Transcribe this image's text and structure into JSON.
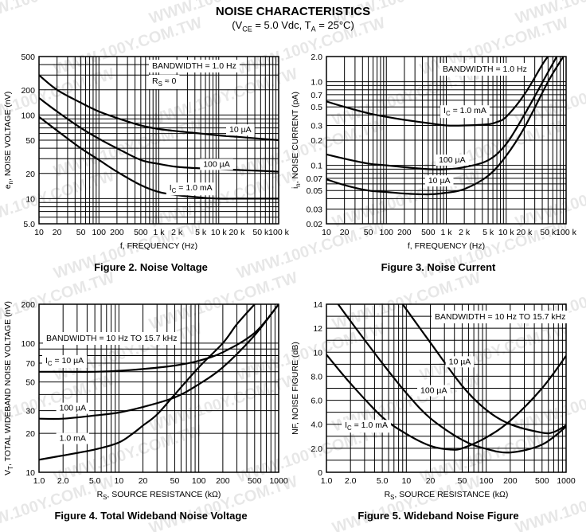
{
  "header": {
    "title": "NOISE CHARACTERISTICS",
    "subtitle_prefix": "(V",
    "subtitle_sub1": "CE",
    "subtitle_mid": " = 5.0 Vdc, T",
    "subtitle_sub2": "A",
    "subtitle_suffix": " = 25°C)"
  },
  "watermark": "WWW.100Y.COM.TW",
  "chart_data": [
    {
      "id": "fig2",
      "type": "line",
      "caption": "Figure 2. Noise Voltage",
      "title": "",
      "xlabel": "f, FREQUENCY (Hz)",
      "ylabel": "e_n, NOISE VOLTAGE (nV)",
      "xscale": "log",
      "yscale": "log",
      "xlim": [
        10,
        100000
      ],
      "ylim": [
        5,
        500
      ],
      "grid": true,
      "xticks": [
        10,
        20,
        50,
        100,
        200,
        500,
        1000,
        2000,
        5000,
        10000,
        20000,
        50000,
        100000
      ],
      "xtick_labels": [
        "10",
        "20",
        "50",
        "100",
        "200",
        "500",
        "1 k",
        "2 k",
        "5 k",
        "10 k",
        "20 k",
        "50 k",
        "100 k"
      ],
      "yticks": [
        5,
        10,
        20,
        50,
        100,
        200,
        500
      ],
      "ytick_labels": [
        "5.0",
        "10",
        "20",
        "50",
        "100",
        "200",
        "500"
      ],
      "annotations": [
        "BANDWIDTH = 1.0 Hz",
        "R_S ≈ 0"
      ],
      "series": [
        {
          "name": "10 µA",
          "x": [
            10,
            20,
            50,
            100,
            200,
            500,
            1000,
            2000,
            5000,
            10000,
            20000,
            50000,
            100000
          ],
          "y": [
            300,
            200,
            140,
            110,
            92,
            75,
            68,
            64,
            60,
            57,
            55,
            52,
            50
          ]
        },
        {
          "name": "100 µA",
          "x": [
            10,
            20,
            50,
            100,
            200,
            500,
            1000,
            2000,
            5000,
            10000,
            20000,
            50000,
            100000
          ],
          "y": [
            160,
            110,
            70,
            52,
            40,
            29,
            26,
            24,
            23,
            22.5,
            22,
            21.5,
            21
          ]
        },
        {
          "name": "I_C = 1.0 mA",
          "x": [
            10,
            20,
            50,
            100,
            200,
            500,
            1000,
            2000,
            5000,
            10000,
            20000,
            50000,
            100000
          ],
          "y": [
            95,
            65,
            40,
            29,
            21,
            14.5,
            12,
            11,
            10.3,
            10,
            10,
            10,
            10
          ]
        }
      ],
      "labels": [
        {
          "text": "10 µA",
          "x": 15000,
          "y": 62
        },
        {
          "text": "100 µA",
          "x": 5500,
          "y": 24
        },
        {
          "text": "I_C = 1.0 mA",
          "x": 1500,
          "y": 12.5
        }
      ]
    },
    {
      "id": "fig3",
      "type": "line",
      "caption": "Figure 3. Noise Current",
      "title": "",
      "xlabel": "f, FREQUENCY (Hz)",
      "ylabel": "i_n, NOISE CURRENT (pA)",
      "xscale": "log",
      "yscale": "log",
      "xlim": [
        10,
        100000
      ],
      "ylim": [
        0.02,
        2.0
      ],
      "grid": true,
      "xticks": [
        10,
        20,
        50,
        100,
        200,
        500,
        1000,
        2000,
        5000,
        10000,
        20000,
        50000,
        100000
      ],
      "xtick_labels": [
        "10",
        "20",
        "50",
        "100",
        "200",
        "500",
        "1 k",
        "2 k",
        "5 k",
        "10 k",
        "20 k",
        "50 k",
        "100 k"
      ],
      "yticks": [
        0.02,
        0.03,
        0.05,
        0.07,
        0.1,
        0.2,
        0.3,
        0.5,
        0.7,
        1.0,
        2.0
      ],
      "ytick_labels": [
        "0.02",
        "0.03",
        "0.05",
        "0.07",
        "0.1",
        "0.2",
        "0.3",
        "0.5",
        "0.7",
        "1.0",
        "2.0"
      ],
      "annotations": [
        "BANDWIDTH = 1.0 Hz"
      ],
      "series": [
        {
          "name": "I_C = 1.0 mA",
          "x": [
            10,
            20,
            50,
            100,
            200,
            500,
            1000,
            2000,
            5000,
            7000,
            10000,
            20000,
            40000,
            50000
          ],
          "y": [
            0.58,
            0.5,
            0.42,
            0.38,
            0.35,
            0.32,
            0.3,
            0.3,
            0.31,
            0.33,
            0.38,
            0.7,
            1.6,
            2.0
          ]
        },
        {
          "name": "100 µA",
          "x": [
            10,
            20,
            50,
            100,
            200,
            500,
            1000,
            2000,
            5000,
            10000,
            20000,
            50000,
            70000
          ],
          "y": [
            0.135,
            0.12,
            0.105,
            0.1,
            0.095,
            0.09,
            0.09,
            0.095,
            0.115,
            0.18,
            0.4,
            1.3,
            2.0
          ]
        },
        {
          "name": "10 µA",
          "x": [
            10,
            20,
            50,
            100,
            200,
            500,
            1000,
            2000,
            5000,
            10000,
            20000,
            50000,
            90000
          ],
          "y": [
            0.068,
            0.058,
            0.05,
            0.048,
            0.046,
            0.045,
            0.047,
            0.052,
            0.075,
            0.13,
            0.28,
            1.0,
            2.0
          ]
        }
      ],
      "labels": [
        {
          "text": "I_C = 1.0 mA",
          "x": 900,
          "y": 0.42
        },
        {
          "text": "100 µA",
          "x": 750,
          "y": 0.108
        },
        {
          "text": "10 µA",
          "x": 500,
          "y": 0.061
        }
      ]
    },
    {
      "id": "fig4",
      "type": "line",
      "caption": "Figure 4. Total Wideband Noise Voltage",
      "title": "",
      "xlabel": "R_S, SOURCE RESISTANCE (kΩ)",
      "ylabel": "V_T, TOTAL WIDEBAND NOISE VOLTAGE (nV)",
      "xscale": "log",
      "yscale": "log",
      "xlim": [
        1,
        1000
      ],
      "ylim": [
        10,
        200
      ],
      "grid": true,
      "xticks": [
        1,
        2,
        5,
        10,
        20,
        50,
        100,
        200,
        500,
        1000
      ],
      "xtick_labels": [
        "1.0",
        "2.0",
        "5.0",
        "10",
        "20",
        "50",
        "100",
        "200",
        "500",
        "1000"
      ],
      "yticks": [
        10,
        20,
        30,
        50,
        70,
        100,
        200
      ],
      "ytick_labels": [
        "10",
        "20",
        "30",
        "50",
        "70",
        "100",
        "200"
      ],
      "annotations": [
        "BANDWIDTH = 10 Hz TO 15.7 kHz"
      ],
      "series": [
        {
          "name": "I_C = 10 µA",
          "x": [
            1,
            2,
            5,
            10,
            20,
            50,
            100,
            200,
            500,
            1000
          ],
          "y": [
            60,
            60,
            60,
            61,
            63,
            67,
            73,
            85,
            120,
            200
          ]
        },
        {
          "name": "100 µA",
          "x": [
            1,
            2,
            5,
            10,
            20,
            50,
            100,
            200,
            500,
            1000
          ],
          "y": [
            26,
            26,
            27.5,
            29,
            32,
            38,
            48,
            65,
            115,
            200
          ]
        },
        {
          "name": "1.0 mA",
          "x": [
            1,
            2,
            5,
            10,
            15,
            20,
            30,
            50,
            100,
            200,
            300,
            500
          ],
          "y": [
            12.5,
            13.5,
            15,
            17,
            20,
            23,
            28,
            40,
            65,
            100,
            140,
            200
          ]
        }
      ],
      "labels": [
        {
          "text": "I_C = 10 µA",
          "x": 1.2,
          "y": 70
        },
        {
          "text": "100 µA",
          "x": 1.8,
          "y": 30
        },
        {
          "text": "1.0 mA",
          "x": 1.8,
          "y": 17.5
        }
      ]
    },
    {
      "id": "fig5",
      "type": "line",
      "caption": "Figure 5. Wideband Noise Figure",
      "title": "",
      "xlabel": "R_S, SOURCE RESISTANCE (kΩ)",
      "ylabel": "NF, NOISE FIGURE (dB)",
      "xscale": "log",
      "yscale": "linear",
      "xlim": [
        1,
        1000
      ],
      "ylim": [
        0,
        14
      ],
      "grid": true,
      "xticks": [
        1,
        2,
        5,
        10,
        20,
        50,
        100,
        200,
        500,
        1000
      ],
      "xtick_labels": [
        "1.0",
        "2.0",
        "5.0",
        "10",
        "20",
        "50",
        "100",
        "200",
        "500",
        "1000"
      ],
      "yticks": [
        0,
        2,
        4,
        6,
        8,
        10,
        12,
        14
      ],
      "ytick_labels": [
        "0",
        "2.0",
        "4.0",
        "6.0",
        "8.0",
        "10",
        "12",
        "14"
      ],
      "annotations": [
        "BANDWIDTH = 10 Hz TO 15.7 kHz"
      ],
      "series": [
        {
          "name": "10 µA",
          "x": [
            9,
            20,
            50,
            100,
            200,
            500,
            700,
            1000
          ],
          "y": [
            14,
            10.8,
            7.2,
            5.2,
            4.0,
            3.3,
            3.35,
            3.9
          ]
        },
        {
          "name": "100 µA",
          "x": [
            1.4,
            2,
            5,
            10,
            20,
            50,
            100,
            200,
            500,
            1000
          ],
          "y": [
            14,
            12.6,
            9.1,
            6.6,
            4.5,
            2.7,
            1.95,
            1.65,
            2.3,
            3.8
          ]
        },
        {
          "name": "I_C = 1.0 mA",
          "x": [
            1,
            2,
            5,
            10,
            20,
            35,
            50,
            100,
            200,
            500,
            1000
          ],
          "y": [
            9.8,
            7.4,
            4.6,
            3.2,
            2.2,
            1.9,
            2.0,
            2.9,
            4.3,
            7.0,
            9.7
          ]
        }
      ],
      "labels": [
        {
          "text": "10 µA",
          "x": 34,
          "y": 9.0
        },
        {
          "text": "100 µA",
          "x": 15,
          "y": 6.6
        },
        {
          "text": "I_C = 1.0 mA",
          "x": 1.7,
          "y": 3.7
        }
      ]
    }
  ]
}
